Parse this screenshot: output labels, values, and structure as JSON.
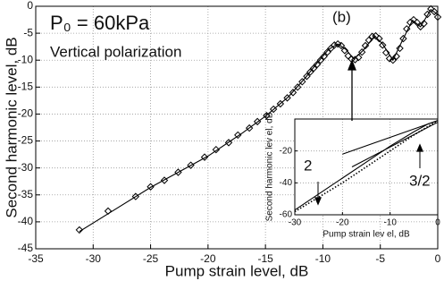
{
  "chart_data": [
    {
      "type": "line",
      "xlabel": "Pump strain level, dB",
      "ylabel": "Second harmonic level, dB",
      "xlim": [
        -35,
        0
      ],
      "xticks": [
        -35,
        -30,
        -25,
        -20,
        -15,
        -10,
        -5,
        0
      ],
      "ylim": [
        -45,
        0
      ],
      "yticks": [
        -45,
        -40,
        -35,
        -30,
        -25,
        -20,
        -15,
        -10,
        -5,
        0
      ],
      "grid": true,
      "annotations": [
        "P₀ = 60kPa",
        "Vertical polarization",
        "(b)"
      ],
      "series": [
        {
          "color": "#000000",
          "line": "none",
          "marker": "diamond",
          "x": [
            -31.2,
            -28.7,
            -26.3,
            -25,
            -23.8,
            -22.6,
            -21.5,
            -20.3,
            -19.3,
            -18.2,
            -17.4,
            -16.4,
            -15.7,
            -14.9,
            -14.3,
            -13.7,
            -13.1,
            -12.6,
            -12.2,
            -11.8,
            -11.4,
            -11.1,
            -10.8,
            -10.5,
            -10.2,
            -9.9,
            -9.6,
            -9.3,
            -9,
            -8.7,
            -8.4,
            -8.1,
            -7.8,
            -7.5,
            -7.2,
            -6.9,
            -6.6,
            -6.3,
            -6,
            -5.7,
            -5.4,
            -5.1,
            -4.8,
            -4.5,
            -4.2,
            -3.9,
            -3.6,
            -3.3,
            -3,
            -2.7,
            -2.4,
            -2.1,
            -1.8,
            -1.5,
            -1.2,
            -0.9,
            -0.6,
            -0.3,
            0
          ],
          "values": [
            -41.5,
            -38,
            -35.3,
            -33.5,
            -32.3,
            -30.8,
            -29.5,
            -28,
            -26.6,
            -25.3,
            -23.9,
            -22.6,
            -21.4,
            -20.3,
            -19.1,
            -18.1,
            -17,
            -16,
            -15,
            -14,
            -13,
            -12.2,
            -11.5,
            -10.8,
            -10,
            -9.3,
            -8.5,
            -7.8,
            -7.2,
            -7,
            -7.3,
            -8.2,
            -9.2,
            -9.8,
            -9.9,
            -9.5,
            -8.5,
            -7.3,
            -6.3,
            -5.6,
            -5.5,
            -6,
            -7.2,
            -8.6,
            -9.7,
            -10,
            -9.3,
            -7.8,
            -6,
            -4.2,
            -3,
            -2.5,
            -3,
            -3.8,
            -3.2,
            -1.5,
            -0.5,
            -1,
            -2
          ]
        },
        {
          "color": "#000000",
          "line": "solid",
          "x": [
            -31.2,
            -25,
            -20,
            -17,
            -15,
            -13,
            -11.5,
            -10.5,
            -9.5,
            -8.7,
            -8,
            -7.3,
            -6.5,
            -5.5,
            -4.8,
            -3.9,
            -3,
            -2.2,
            -1.5,
            -0.6,
            0
          ],
          "values": [
            -41.8,
            -33.6,
            -27.8,
            -23.5,
            -20.4,
            -16.8,
            -13.2,
            -10.5,
            -8,
            -7,
            -8,
            -9.8,
            -8.2,
            -5.5,
            -7,
            -10,
            -6,
            -2.6,
            -3.8,
            -0.6,
            -1.5
          ]
        }
      ]
    },
    {
      "type": "line",
      "xlabel": "Pump strain lev el, dB",
      "ylabel": "Second harmonic lev el, dB",
      "xlim": [
        -30,
        0
      ],
      "xticks": [
        -30,
        -20,
        -10,
        0
      ],
      "ylim": [
        -60,
        0
      ],
      "yticks": [
        -60,
        -40,
        -20
      ],
      "grid": true,
      "annotations": [
        "2",
        "3/2"
      ],
      "series": [
        {
          "color": "#000000",
          "line": "solid",
          "x": [
            -30,
            -25,
            -20,
            -15,
            -10,
            -5,
            -2,
            0
          ],
          "values": [
            -57,
            -47,
            -37,
            -27,
            -17,
            -8,
            -3,
            -1
          ]
        },
        {
          "color": "#000000",
          "line": "dotted",
          "x": [
            -30,
            -25,
            -20,
            -15,
            -10,
            -5,
            0
          ],
          "values": [
            -58,
            -49,
            -40,
            -30,
            -20,
            -10,
            -1
          ]
        },
        {
          "color": "#000000",
          "line": "solid",
          "x": [
            -20,
            0
          ],
          "values": [
            -22,
            -1
          ]
        },
        {
          "color": "#000000",
          "line": "solid",
          "x": [
            -18,
            0
          ],
          "values": [
            -30,
            -2
          ]
        }
      ]
    }
  ]
}
